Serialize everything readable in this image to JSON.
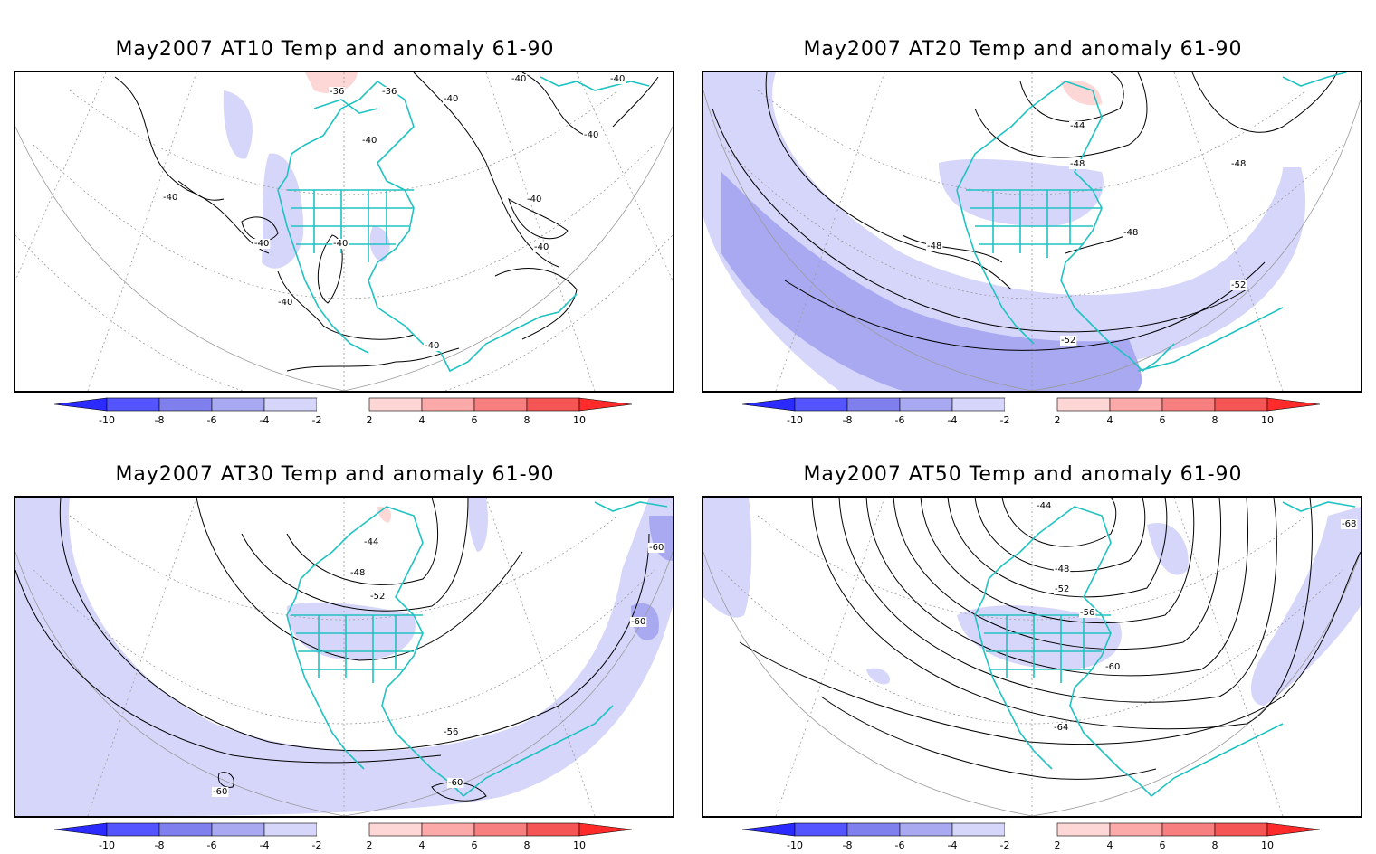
{
  "panels": [
    {
      "title": "May2007 AT10 Temp and anomaly 61-90",
      "contour_labels": [
        "-36",
        "-36",
        "-40",
        "-40",
        "-40",
        "-40",
        "-40",
        "-40",
        "-40",
        "-40",
        "-40",
        "-40",
        "-40",
        "-40"
      ]
    },
    {
      "title": "May2007 AT20 Temp and anomaly 61-90",
      "contour_labels": [
        "-44",
        "-48",
        "-48",
        "-48",
        "-48",
        "-52",
        "-52"
      ]
    },
    {
      "title": "May2007 AT30 Temp and anomaly 61-90",
      "contour_labels": [
        "-44",
        "-48",
        "-52",
        "-56",
        "-60",
        "-60",
        "-60",
        "-60"
      ]
    },
    {
      "title": "May2007 AT50 Temp and anomaly 61-90",
      "contour_labels": [
        "-44",
        "-48",
        "-52",
        "-56",
        "-60",
        "-64",
        "-68"
      ]
    }
  ],
  "colorbar": {
    "labels": [
      "-10",
      "-8",
      "-6",
      "-4",
      "-2",
      "2",
      "4",
      "6",
      "8",
      "10"
    ],
    "colors": [
      "#2b2bff",
      "#5555ff",
      "#7f7fee",
      "#a9a9f2",
      "#d6d6fb",
      "#ffffff",
      "#fdd6d6",
      "#fba9a9",
      "#f77f7f",
      "#f55555",
      "#ff2b2b"
    ]
  },
  "colors": {
    "coastline": "#20c2c2",
    "contour": "#000000",
    "grid": "#9a9a9a",
    "neg_light": "#d6d6fb",
    "neg_mid": "#a9a9f2",
    "pos_light": "#fdd6d6"
  }
}
